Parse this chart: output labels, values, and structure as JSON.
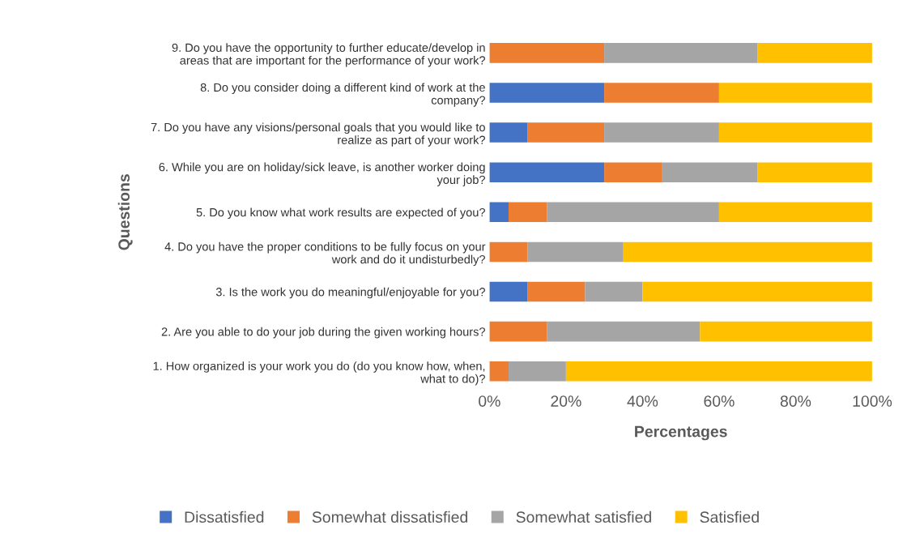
{
  "chart_data": {
    "type": "bar",
    "orientation": "horizontal",
    "stacked": true,
    "xlabel": "Percentages",
    "ylabel": "Questions",
    "categories": [
      "9. Do you have the opportunity to further educate/develop in\nareas that are important for the performance of your work?",
      "8. Do you consider doing a different kind of work at the\ncompany?",
      "7. Do you have any visions/personal goals that you would like to\nrealize as part of your work?",
      "6. While you are on holiday/sick leave, is another worker doing\nyour job?",
      "5. Do you know what work results are expected of you?",
      "4. Do you have the proper conditions to be fully focus on your\nwork and do it undisturbedly?",
      "3. Is the work you do meaningful/enjoyable for you?",
      "2. Are you able to do your job during the given working hours?",
      "1. How organized is your work you do (do you know how, when,\nwhat to do)?"
    ],
    "series": [
      {
        "name": "Dissatisfied",
        "color": "#4472c4",
        "values": [
          0,
          30,
          10,
          30,
          5,
          0,
          10,
          0,
          0
        ]
      },
      {
        "name": "Somewhat dissatisfied",
        "color": "#ed7d31",
        "values": [
          30,
          30,
          20,
          15,
          10,
          10,
          15,
          15,
          5
        ]
      },
      {
        "name": "Somewhat satisfied",
        "color": "#a5a5a5",
        "values": [
          40,
          0,
          30,
          25,
          45,
          25,
          15,
          40,
          15
        ]
      },
      {
        "name": "Satisfied",
        "color": "#ffc000",
        "values": [
          30,
          40,
          40,
          30,
          40,
          65,
          60,
          45,
          80
        ]
      }
    ],
    "xlim": [
      0,
      100
    ],
    "xticks": [
      {
        "value": 0,
        "label": "0%"
      },
      {
        "value": 20,
        "label": "20%"
      },
      {
        "value": 40,
        "label": "40%"
      },
      {
        "value": 60,
        "label": "60%"
      },
      {
        "value": 80,
        "label": "80%"
      },
      {
        "value": 100,
        "label": "100%"
      }
    ],
    "grid": false,
    "legend": "bottom"
  }
}
